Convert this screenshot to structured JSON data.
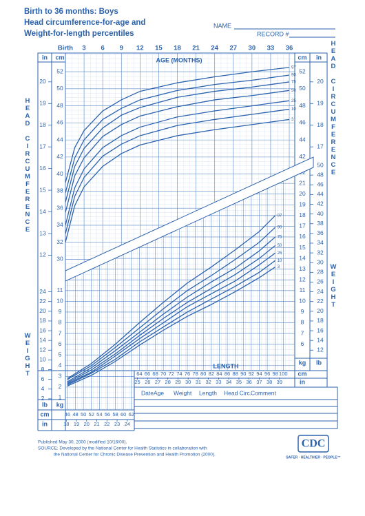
{
  "header": {
    "title": [
      "Birth to 36 months: Boys",
      "Head circumference-for-age and",
      "Weight-for-length percentiles"
    ]
  },
  "form": {
    "name": "NAME",
    "record": "RECORD #"
  },
  "chart_data": [
    {
      "type": "line",
      "x_label": "AGE (MONTHS)",
      "y_label": "HEAD CIRCUMFERENCE",
      "y_unit": "cm",
      "y2_unit": "in",
      "x": [
        0,
        1.5,
        3,
        6,
        9,
        12,
        18,
        24,
        30,
        36
      ],
      "series": [
        {
          "name": "97",
          "color": "#2b62ad",
          "values": [
            39,
            43.1,
            45.1,
            47.4,
            48.7,
            49.7,
            50.7,
            51.4,
            52.0,
            52.5
          ]
        },
        {
          "name": "90",
          "color": "#2b62ad",
          "values": [
            37.8,
            41.9,
            44.0,
            46.4,
            47.7,
            48.7,
            49.8,
            50.5,
            51.0,
            51.6
          ]
        },
        {
          "name": "75",
          "color": "#2b62ad",
          "values": [
            36.7,
            40.9,
            43.0,
            45.4,
            46.9,
            47.8,
            49.0,
            49.7,
            50.2,
            50.8
          ]
        },
        {
          "name": "50",
          "color": "#2b62ad",
          "values": [
            35.5,
            39.8,
            41.9,
            44.4,
            45.8,
            46.8,
            47.9,
            48.7,
            49.2,
            49.8
          ]
        },
        {
          "name": "25",
          "color": "#2b62ad",
          "values": [
            34,
            38.4,
            40.6,
            43.1,
            44.5,
            45.5,
            46.7,
            47.4,
            48.0,
            48.6
          ]
        },
        {
          "name": "10",
          "color": "#2b62ad",
          "values": [
            33,
            37.4,
            39.6,
            42.1,
            43.5,
            44.5,
            45.7,
            46.4,
            47.0,
            47.6
          ]
        },
        {
          "name": "3",
          "color": "#2b62ad",
          "values": [
            32,
            36.3,
            38.5,
            40.9,
            42.4,
            43.4,
            44.5,
            45.2,
            45.8,
            46.4
          ]
        }
      ],
      "xlim": [
        0,
        36
      ],
      "xticks": [
        {
          "value": 0,
          "label": "Birth"
        },
        3,
        6,
        9,
        12,
        15,
        18,
        21,
        24,
        27,
        30,
        33,
        36
      ],
      "ylim": [
        28.5,
        53.3
      ],
      "yticks": [
        30,
        32,
        34,
        36,
        38,
        40,
        42,
        44,
        46,
        48,
        50,
        52
      ],
      "y2lim": [
        11.22,
        20.98
      ],
      "y2ticks": [
        12,
        13,
        14,
        15,
        16,
        17,
        18,
        19,
        20
      ],
      "grid": true
    },
    {
      "type": "line",
      "x_label": "LENGTH",
      "y_label": "WEIGHT",
      "x_unit": "cm",
      "x2_unit": "in",
      "y_unit": "kg",
      "y2_unit": "lb",
      "x": [
        46,
        52,
        58,
        64,
        70,
        76,
        82,
        88,
        94,
        98
      ],
      "series": [
        {
          "name": "97",
          "color": "#2b62ad",
          "values": [
            2.8,
            4.2,
            6.0,
            8.0,
            9.9,
            11.7,
            13.2,
            14.8,
            16.5,
            18.0
          ]
        },
        {
          "name": "90",
          "color": "#2b62ad",
          "values": [
            2.7,
            4.0,
            5.7,
            7.5,
            9.3,
            11.0,
            12.4,
            13.9,
            15.5,
            16.9
          ]
        },
        {
          "name": "75",
          "color": "#2b62ad",
          "values": [
            2.5,
            3.8,
            5.4,
            7.1,
            8.8,
            10.4,
            11.8,
            13.1,
            14.7,
            16.0
          ]
        },
        {
          "name": "50",
          "color": "#2b62ad",
          "values": [
            2.4,
            3.6,
            5.1,
            6.8,
            8.4,
            9.9,
            11.2,
            12.5,
            14.0,
            15.2
          ]
        },
        {
          "name": "25",
          "color": "#2b62ad",
          "values": [
            2.3,
            3.4,
            4.9,
            6.5,
            8.0,
            9.5,
            10.7,
            11.9,
            13.4,
            14.5
          ]
        },
        {
          "name": "10",
          "color": "#2b62ad",
          "values": [
            2.2,
            3.3,
            4.6,
            6.2,
            7.6,
            9.0,
            10.2,
            11.4,
            12.7,
            13.8
          ]
        },
        {
          "name": "3",
          "color": "#2b62ad",
          "values": [
            2.1,
            3.1,
            4.4,
            5.9,
            7.3,
            8.6,
            9.7,
            10.9,
            12.2,
            13.2
          ]
        }
      ],
      "xlim": [
        45.5,
        101.5
      ],
      "xticks": [
        46,
        48,
        50,
        52,
        54,
        56,
        58,
        60,
        62,
        64,
        66,
        68,
        70,
        72,
        74,
        76,
        78,
        80,
        82,
        84,
        86,
        88,
        90,
        92,
        94,
        96,
        98,
        100
      ],
      "x2lim": [
        17.91,
        39.96
      ],
      "x2ticks": [
        18,
        19,
        20,
        21,
        22,
        23,
        24,
        25,
        26,
        27,
        28,
        29,
        30,
        31,
        32,
        33,
        34,
        35,
        36,
        37,
        38,
        39
      ],
      "ylim": [
        0,
        23
      ],
      "yticks": [
        1,
        2,
        3,
        4,
        5,
        6,
        7,
        8,
        9,
        10,
        11,
        12,
        13,
        14,
        15,
        16,
        17,
        18,
        19,
        20,
        21,
        22
      ],
      "y2lim": [
        0,
        50.71
      ],
      "y2ticks": [
        2,
        4,
        6,
        8,
        10,
        12,
        14,
        16,
        18,
        20,
        22,
        24,
        26,
        28,
        30,
        32,
        34,
        36,
        38,
        40,
        42,
        44,
        46,
        48,
        50
      ],
      "grid": true
    }
  ],
  "table": {
    "columns": [
      "Date",
      "Age",
      "Weight",
      "Length",
      "Head Circ.",
      "Comment"
    ]
  },
  "footer": {
    "published": "Published May 30, 2000 (modified 10/16/00).",
    "source": [
      "SOURCE: Developed by the National Center for Health Statistics in collaboration with",
      "the National Center for Chronic Disease Prevention and Health Promotion (2000)."
    ]
  },
  "logo": {
    "text": "CDC",
    "tagline": "SAFER · HEALTHIER · PEOPLE™"
  }
}
